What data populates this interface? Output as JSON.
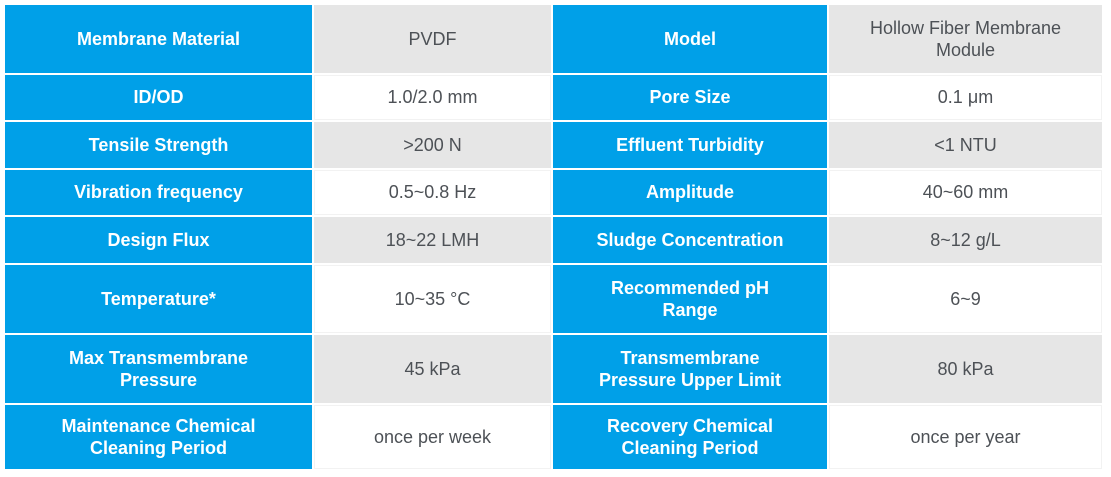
{
  "colors": {
    "header_blue": "#00a0e8",
    "alt_row_gray": "#e6e6e6",
    "value_text": "#4d5156",
    "label_text": "#ffffff"
  },
  "table": {
    "description": "Membrane module specification table, two label/value column pairs",
    "rows": [
      {
        "label_left": "Membrane Material",
        "value_left": "PVDF",
        "label_right": "Model",
        "value_right": "Hollow Fiber Membrane\nModule"
      },
      {
        "label_left": "ID/OD",
        "value_left": "1.0/2.0 mm",
        "label_right": "Pore Size",
        "value_right": "0.1 μm"
      },
      {
        "label_left": "Tensile Strength",
        "value_left": ">200 N",
        "label_right": "Effluent Turbidity",
        "value_right": "<1 NTU"
      },
      {
        "label_left": "Vibration frequency",
        "value_left": "0.5~0.8 Hz",
        "label_right": "Amplitude",
        "value_right": "40~60 mm"
      },
      {
        "label_left": "Design Flux",
        "value_left": "18~22 LMH",
        "label_right": "Sludge Concentration",
        "value_right": "8~12 g/L"
      },
      {
        "label_left": "Temperature*",
        "value_left": "10~35 °C",
        "label_right": "Recommended pH\nRange",
        "value_right": "6~9"
      },
      {
        "label_left": "Max Transmembrane\nPressure",
        "value_left": "45 kPa",
        "label_right": "Transmembrane\nPressure Upper Limit",
        "value_right": "80 kPa"
      },
      {
        "label_left": "Maintenance Chemical\nCleaning Period",
        "value_left": "once per week",
        "label_right": "Recovery Chemical\nCleaning Period",
        "value_right": "once per year"
      }
    ]
  }
}
